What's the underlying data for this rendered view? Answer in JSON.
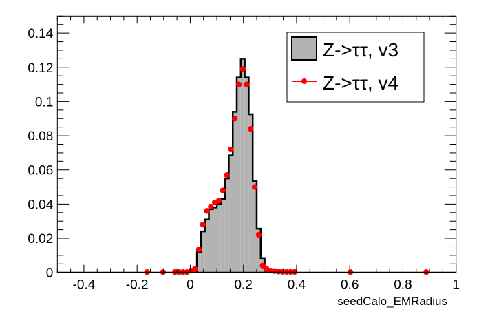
{
  "chart_data": {
    "type": "bar",
    "title": "",
    "xlabel": "seedCalo_EMRadius",
    "ylabel": "",
    "xlim": [
      -0.5,
      1.0
    ],
    "ylim": [
      0,
      0.15
    ],
    "x_ticks": [
      "-0.4",
      "-0.2",
      "0",
      "0.2",
      "0.4",
      "0.6",
      "0.8",
      "1"
    ],
    "x_tick_values": [
      -0.4,
      -0.2,
      0,
      0.2,
      0.4,
      0.6,
      0.8,
      1.0
    ],
    "y_ticks": [
      "0",
      "0.02",
      "0.04",
      "0.06",
      "0.08",
      "0.1",
      "0.12",
      "0.14"
    ],
    "y_tick_values": [
      0,
      0.02,
      0.04,
      0.06,
      0.08,
      0.1,
      0.12,
      0.14
    ],
    "grid": false,
    "legend_position": "top-right",
    "series": [
      {
        "name": "Z->ττ, v3",
        "style": "filled-histogram",
        "fill_color": "#b3b3b3",
        "line_color": "#000000",
        "bin_width": 0.015,
        "bin_low_edges": [
          0.025,
          0.04,
          0.055,
          0.07,
          0.085,
          0.1,
          0.115,
          0.13,
          0.145,
          0.16,
          0.175,
          0.19,
          0.205,
          0.22,
          0.235,
          0.25,
          0.265,
          0.28
        ],
        "values": [
          0.012,
          0.024,
          0.031,
          0.037,
          0.038,
          0.04,
          0.043,
          0.055,
          0.0685,
          0.094,
          0.114,
          0.125,
          0.114,
          0.0925,
          0.0536,
          0.0256,
          0.0084,
          0.001
        ]
      },
      {
        "name": "Z->ττ, v4",
        "style": "markers",
        "color": "#ff0000",
        "x": [
          -0.1625,
          -0.1025,
          -0.0575,
          -0.0425,
          -0.0275,
          -0.0125,
          0.0025,
          0.0175,
          0.0325,
          0.0475,
          0.0625,
          0.0775,
          0.0925,
          0.1075,
          0.1225,
          0.1375,
          0.1525,
          0.1675,
          0.1825,
          0.1975,
          0.2125,
          0.2275,
          0.2425,
          0.2575,
          0.2725,
          0.2875,
          0.3025,
          0.3175,
          0.3325,
          0.3475,
          0.3625,
          0.3775,
          0.3925,
          0.6025,
          0.8875
        ],
        "values": [
          0.0002,
          0.0002,
          0.0002,
          0.0002,
          0.0002,
          0.0002,
          0.001,
          0.002,
          0.0135,
          0.028,
          0.036,
          0.0385,
          0.041,
          0.042,
          0.048,
          0.057,
          0.072,
          0.09,
          0.11,
          0.119,
          0.11,
          0.084,
          0.05,
          0.022,
          0.004,
          0.002,
          0.001,
          0.0008,
          0.0005,
          0.0004,
          0.0003,
          0.0003,
          0.0003,
          0.0002,
          0.0002
        ]
      }
    ]
  }
}
